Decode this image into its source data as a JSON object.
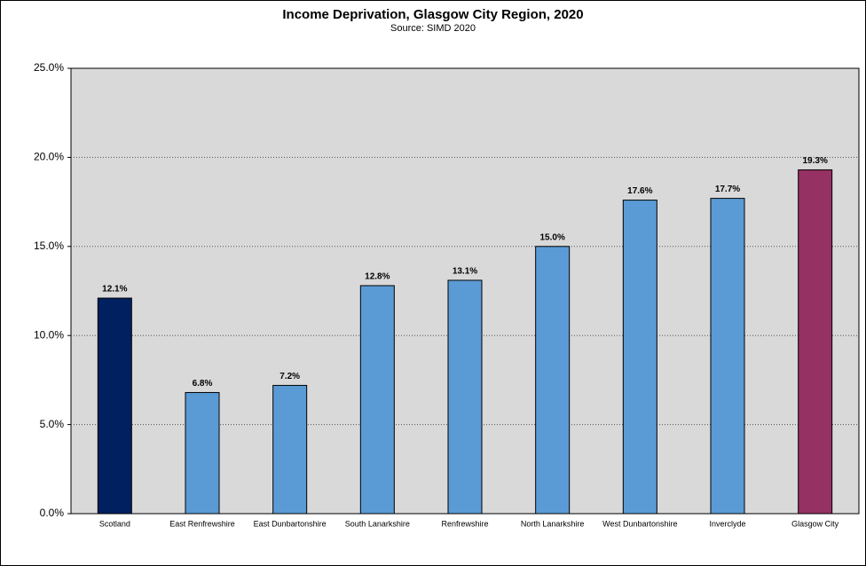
{
  "chart_data": {
    "type": "bar",
    "title": "Income Deprivation, Glasgow City Region, 2020",
    "subtitle": "Source: SIMD 2020",
    "categories": [
      "Scotland",
      "East Renfrewshire",
      "East Dunbartonshire",
      "South Lanarkshire",
      "Renfrewshire",
      "North Lanarkshire",
      "West Dunbartonshire",
      "Inverclyde",
      "Glasgow City"
    ],
    "values": [
      12.1,
      6.8,
      7.2,
      12.8,
      13.1,
      15.0,
      17.6,
      17.7,
      19.3
    ],
    "value_labels": [
      "12.1%",
      "6.8%",
      "7.2%",
      "12.8%",
      "13.1%",
      "15.0%",
      "17.6%",
      "17.7%",
      "19.3%"
    ],
    "colors": [
      "#002060",
      "#5b9bd5",
      "#5b9bd5",
      "#5b9bd5",
      "#5b9bd5",
      "#5b9bd5",
      "#5b9bd5",
      "#5b9bd5",
      "#953163"
    ],
    "ylim": [
      0,
      25
    ],
    "yticks": [
      {
        "value": 0,
        "label": "0.0%"
      },
      {
        "value": 5,
        "label": "5.0%"
      },
      {
        "value": 10,
        "label": "10.0%"
      },
      {
        "value": 15,
        "label": "15.0%"
      },
      {
        "value": 20,
        "label": "20.0%"
      },
      {
        "value": 25,
        "label": "25.0%"
      }
    ],
    "grid": true
  }
}
